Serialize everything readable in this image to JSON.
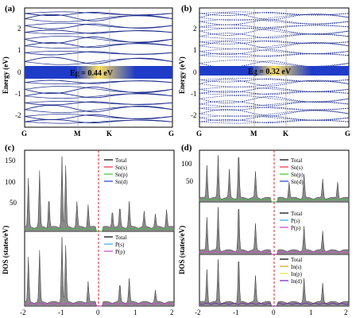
{
  "panels": {
    "a": {
      "label": "(a)",
      "ylabel": "Energy (eV)",
      "gap_label": "Eg = 0.44 eV",
      "y_ticks": [
        "2",
        "1",
        "0",
        "-1",
        "-2"
      ],
      "k_labels": [
        "G",
        "M",
        "K",
        "G"
      ]
    },
    "b": {
      "label": "(b)",
      "ylabel": "Energy (eV)",
      "gap_label": "Eg = 0.32 eV",
      "y_ticks": [
        "2",
        "1",
        "0",
        "-1",
        "-2"
      ],
      "k_labels": [
        "G",
        "M",
        "K",
        "G"
      ]
    },
    "c": {
      "label": "(c)",
      "ylabel": "DOS (states/eV)",
      "x_ticks": [
        "-2",
        "-1",
        "0",
        "1",
        "2"
      ],
      "top_ticks": [
        "150",
        "100",
        "50"
      ],
      "legend_top": [
        "Total",
        "Sn(s)",
        "Sn(p)",
        "Sn(d)"
      ],
      "legend_bottom": [
        "Total",
        "P(s)",
        "P(p)"
      ]
    },
    "d": {
      "label": "(d)",
      "ylabel": "DOS (states/eV)",
      "x_ticks": [
        "-2",
        "-1",
        "0",
        "1",
        "2"
      ],
      "top_ticks": [
        "100",
        "50"
      ],
      "legend_top": [
        "Total",
        "Sn(s)",
        "Sn(p)",
        "Sn(d)"
      ],
      "legend_mid": [
        "Total",
        "P(s)",
        "P(p)"
      ],
      "legend_bottom": [
        "Total",
        "In(s)",
        "In(p)",
        "In(d)"
      ]
    }
  },
  "colors": {
    "band": "#1a2a8a",
    "gap_band": "#1e3cc8",
    "gap_glow": "#ffd94a",
    "total": "#555555",
    "sn_s": "#e83040",
    "sn_p": "#38c040",
    "sn_d": "#2040d0",
    "p_s": "#38a8d8",
    "p_p": "#d040d0",
    "in_s": "#d8a020",
    "in_p": "#e8e040",
    "in_d": "#7020b0",
    "fermi": "#e0202a"
  },
  "chart_data": [
    {
      "type": "line",
      "panel": "a",
      "xlabel": "",
      "ylabel": "Energy (eV)",
      "ylim": [
        -2.2,
        2.2
      ],
      "x": [
        "G",
        "M",
        "K",
        "G"
      ],
      "band_gap_eV": 0.44,
      "band_centers_eV": [
        -2.0,
        -1.8,
        -1.55,
        -1.3,
        -1.05,
        -0.8,
        -0.55,
        -0.22,
        0.22,
        0.55,
        0.8,
        1.05,
        1.3,
        1.55,
        1.8,
        2.0
      ]
    },
    {
      "type": "line",
      "panel": "b",
      "xlabel": "",
      "ylabel": "Energy (eV)",
      "ylim": [
        -2.2,
        2.2
      ],
      "x": [
        "G",
        "M",
        "K",
        "G"
      ],
      "band_gap_eV": 0.32,
      "band_centers_eV": [
        -2.0,
        -1.85,
        -1.7,
        -1.5,
        -1.35,
        -1.15,
        -0.95,
        -0.8,
        -0.6,
        -0.45,
        -0.16,
        0.16,
        0.45,
        0.6,
        0.8,
        0.95,
        1.15,
        1.35,
        1.5,
        1.7,
        1.85,
        2.0
      ]
    },
    {
      "type": "area",
      "panel": "c",
      "xlabel": "",
      "ylabel": "DOS (states/eV)",
      "xlim": [
        -2,
        2
      ],
      "subplots": [
        {
          "series": [
            {
              "name": "Total",
              "peaks": [
                [
                  -1.9,
                  95
                ],
                [
                  -1.6,
                  110
                ],
                [
                  -1.35,
                  60
                ],
                [
                  -1.0,
                  140
                ],
                [
                  -0.9,
                  120
                ],
                [
                  -0.6,
                  50
                ],
                [
                  -0.3,
                  45
                ],
                [
                  0.35,
                  35
                ],
                [
                  0.55,
                  40
                ],
                [
                  0.8,
                  50
                ],
                [
                  1.2,
                  30
                ],
                [
                  1.5,
                  25
                ],
                [
                  1.8,
                  35
                ]
              ]
            }
          ],
          "ylim": [
            0,
            160
          ]
        },
        {
          "series": [
            {
              "name": "Total",
              "peaks": [
                [
                  -1.9,
                  95
                ],
                [
                  -1.6,
                  110
                ],
                [
                  -1.0,
                  140
                ],
                [
                  -0.9,
                  120
                ],
                [
                  -0.3,
                  45
                ],
                [
                  0.55,
                  40
                ],
                [
                  0.8,
                  50
                ],
                [
                  1.5,
                  25
                ]
              ]
            }
          ],
          "ylim": [
            0,
            160
          ]
        }
      ]
    },
    {
      "type": "area",
      "panel": "d",
      "xlabel": "",
      "ylabel": "DOS (states/eV)",
      "xlim": [
        -2,
        2
      ],
      "subplots": [
        {
          "series": [
            {
              "name": "Total",
              "peaks": [
                [
                  -1.8,
                  70
                ],
                [
                  -1.5,
                  90
                ],
                [
                  -1.2,
                  60
                ],
                [
                  -0.95,
                  100
                ],
                [
                  -0.5,
                  55
                ],
                [
                  0.4,
                  35
                ],
                [
                  0.8,
                  50
                ],
                [
                  1.3,
                  40
                ],
                [
                  1.7,
                  35
                ]
              ]
            }
          ],
          "ylim": [
            0,
            110
          ]
        },
        {
          "series": [
            {
              "name": "Total",
              "peaks": [
                [
                  -1.8,
                  70
                ],
                [
                  -1.5,
                  90
                ],
                [
                  -0.95,
                  100
                ],
                [
                  -0.5,
                  55
                ],
                [
                  0.8,
                  50
                ],
                [
                  1.3,
                  40
                ]
              ]
            }
          ],
          "ylim": [
            0,
            110
          ]
        },
        {
          "series": [
            {
              "name": "Total",
              "peaks": [
                [
                  -1.8,
                  70
                ],
                [
                  -1.5,
                  90
                ],
                [
                  -0.95,
                  100
                ],
                [
                  -0.5,
                  55
                ],
                [
                  0.8,
                  50
                ],
                [
                  1.3,
                  40
                ]
              ]
            }
          ],
          "ylim": [
            0,
            110
          ]
        }
      ]
    }
  ]
}
